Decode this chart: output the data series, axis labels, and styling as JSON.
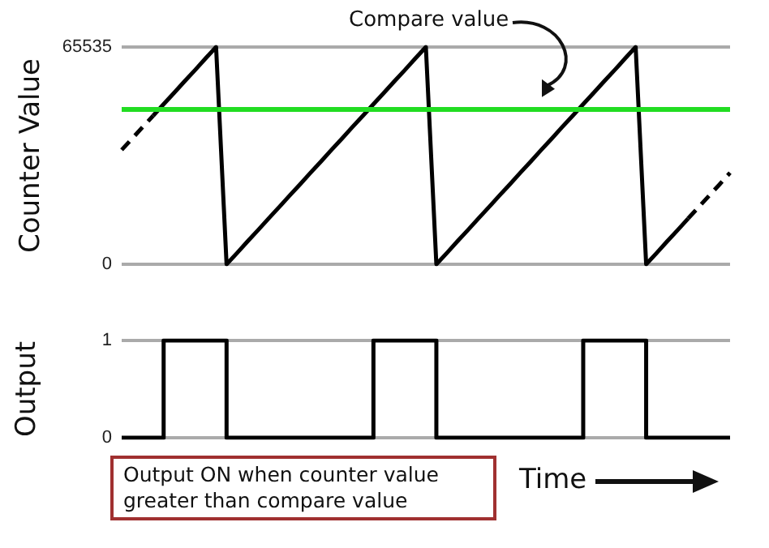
{
  "chart_data": [
    {
      "type": "line",
      "ylabel": "Counter Value",
      "categories": [
        null,
        null,
        null,
        null,
        null,
        null,
        null,
        null,
        null,
        null,
        null,
        null,
        null,
        null,
        null,
        null,
        null,
        null,
        null,
        null,
        null,
        null,
        null,
        null,
        null,
        null,
        null,
        null,
        null,
        null,
        null,
        null,
        null,
        null,
        null,
        null,
        null,
        null,
        null,
        null,
        null,
        null,
        null,
        null,
        null,
        null,
        null,
        null,
        null,
        null,
        null,
        null,
        null,
        null,
        null,
        null,
        null,
        null,
        null
      ],
      "ylim": [
        0,
        65535
      ],
      "yticks": [
        0,
        65535
      ],
      "tick_labels": "y",
      "grid": "y",
      "series": [
        {
          "color": "#000000",
          "line_style": "solid",
          "values": [
            null,
            null,
            null,
            44800,
            48300,
            51700,
            55200,
            58600,
            62100,
            65535,
            0,
            3400,
            6900,
            10300,
            13800,
            17200,
            20700,
            24100,
            27600,
            31000,
            34500,
            37900,
            41400,
            44800,
            48300,
            51700,
            55200,
            58600,
            62100,
            65535,
            0,
            3400,
            6900,
            10300,
            13800,
            17200,
            20700,
            24100,
            27600,
            31000,
            34500,
            37900,
            41400,
            44800,
            48300,
            51700,
            55200,
            58600,
            62100,
            65535,
            0,
            3400,
            6900,
            10300,
            13800,
            null,
            null,
            null,
            null
          ]
        },
        {
          "color": "#000000",
          "line_style": "dashed",
          "values": [
            34500,
            37900,
            41400,
            44800,
            null,
            null,
            null,
            null,
            null,
            null,
            null,
            null,
            null,
            null,
            null,
            null,
            null,
            null,
            null,
            null,
            null,
            null,
            null,
            null,
            null,
            null,
            null,
            null,
            null,
            null,
            null,
            null,
            null,
            null,
            null,
            null,
            null,
            null,
            null,
            null,
            null,
            null,
            null,
            null,
            null,
            null,
            null,
            null,
            null,
            null,
            null,
            null,
            null,
            null,
            null,
            null,
            null,
            null,
            null
          ]
        },
        {
          "color": "#000000",
          "line_style": "dashed",
          "values": [
            null,
            null,
            null,
            null,
            null,
            null,
            null,
            null,
            null,
            null,
            null,
            null,
            null,
            null,
            null,
            null,
            null,
            null,
            null,
            null,
            null,
            null,
            null,
            null,
            null,
            null,
            null,
            null,
            null,
            null,
            null,
            null,
            null,
            null,
            null,
            null,
            null,
            null,
            null,
            null,
            null,
            null,
            null,
            null,
            null,
            null,
            null,
            null,
            null,
            null,
            null,
            null,
            null,
            null,
            13800,
            17200,
            20700,
            24100,
            27600
          ]
        }
      ],
      "ref_lines": [
        {
          "axis": "y",
          "value": 47000,
          "color": "#22dd22",
          "line_style": "solid"
        }
      ],
      "annotations": [
        "Compare value"
      ]
    },
    {
      "type": "step",
      "ylabel": "Output",
      "xlabel": "Time",
      "categories": [
        null,
        null,
        null,
        null,
        null,
        null,
        null,
        null,
        null,
        null,
        null,
        null,
        null,
        null,
        null,
        null,
        null,
        null,
        null,
        null,
        null,
        null,
        null,
        null,
        null,
        null,
        null,
        null,
        null,
        null,
        null,
        null,
        null,
        null,
        null,
        null,
        null,
        null,
        null,
        null,
        null,
        null,
        null,
        null,
        null,
        null,
        null,
        null,
        null,
        null,
        null,
        null,
        null,
        null,
        null,
        null,
        null,
        null,
        null
      ],
      "ylim": [
        0,
        1
      ],
      "yticks": [
        0,
        1
      ],
      "tick_labels": "y",
      "grid": "y",
      "series": [
        {
          "color": "#000000",
          "line_style": "solid",
          "values": [
            0,
            0,
            0,
            0,
            1,
            1,
            1,
            1,
            1,
            1,
            0,
            0,
            0,
            0,
            0,
            0,
            0,
            0,
            0,
            0,
            0,
            0,
            0,
            0,
            1,
            1,
            1,
            1,
            1,
            1,
            0,
            0,
            0,
            0,
            0,
            0,
            0,
            0,
            0,
            0,
            0,
            0,
            0,
            0,
            1,
            1,
            1,
            1,
            1,
            1,
            0,
            0,
            0,
            0,
            0,
            0,
            0,
            0,
            0
          ]
        }
      ],
      "annotations": [
        "Output ON when counter value greater than compare value"
      ]
    }
  ]
}
